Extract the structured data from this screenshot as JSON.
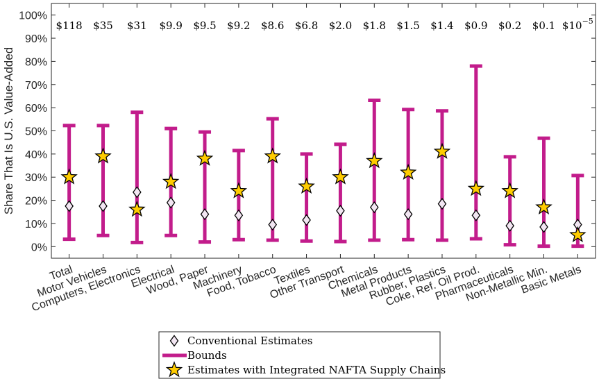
{
  "chart_data": {
    "type": "error-bar",
    "ylabel": "Share That Is U.S. Value-Added",
    "ylim": [
      -5,
      105
    ],
    "yticks": [
      0,
      10,
      20,
      30,
      40,
      50,
      60,
      70,
      80,
      90,
      100
    ],
    "ytick_labels": [
      "0%",
      "10%",
      "20%",
      "30%",
      "40%",
      "50%",
      "60%",
      "70%",
      "80%",
      "90%",
      "100%"
    ],
    "categories": [
      "Total",
      "Motor Vehicles",
      "Computers, Electronics",
      "Electrical",
      "Wood, Paper",
      "Machinery",
      "Food, Tobacco",
      "Textiles",
      "Other Transport",
      "Chemicals",
      "Metal Products",
      "Rubber, Plastics",
      "Coke, Ref. Oil Prod.",
      "Pharmaceuticals",
      "Non-Metallic Min.",
      "Basic Metals"
    ],
    "top_labels": [
      "$118",
      "$35",
      "$31",
      "$9.9",
      "$9.5",
      "$9.2",
      "$8.6",
      "$6.8",
      "$2.0",
      "$1.8",
      "$1.5",
      "$1.4",
      "$0.9",
      "$0.2",
      "$0.1",
      "$10"
    ],
    "top_label_last_exponent": "−5",
    "series": [
      {
        "name": "Conventional Estimates",
        "marker": "diamond",
        "color": "#f2e6f2",
        "values": [
          17.5,
          17.5,
          23.5,
          19,
          14,
          13.5,
          9.5,
          11.5,
          15.5,
          17,
          14,
          18.5,
          13.5,
          9,
          8.5,
          9.5
        ]
      },
      {
        "name": "Bounds",
        "marker": "errorbar",
        "color": "#c21c8b",
        "lower": [
          3.2,
          4.8,
          1.8,
          4.8,
          2,
          3,
          2.8,
          2.4,
          2.2,
          2.8,
          3,
          2.8,
          3.4,
          0.8,
          0.2,
          0.2
        ],
        "upper": [
          52.3,
          52.3,
          58,
          51,
          49.5,
          41.5,
          55.2,
          40,
          44.2,
          63.2,
          59.2,
          58.6,
          78,
          38.8,
          46.8,
          30.7
        ]
      },
      {
        "name": "Estimates with Integrated NAFTA Supply Chains",
        "marker": "star",
        "color": "#ffcc00",
        "values": [
          30,
          39,
          16,
          28,
          38,
          24,
          39,
          26,
          30,
          37,
          32,
          41,
          25,
          24,
          17,
          5
        ]
      }
    ],
    "legend": {
      "placement": "bottom-center"
    },
    "grid": false
  }
}
